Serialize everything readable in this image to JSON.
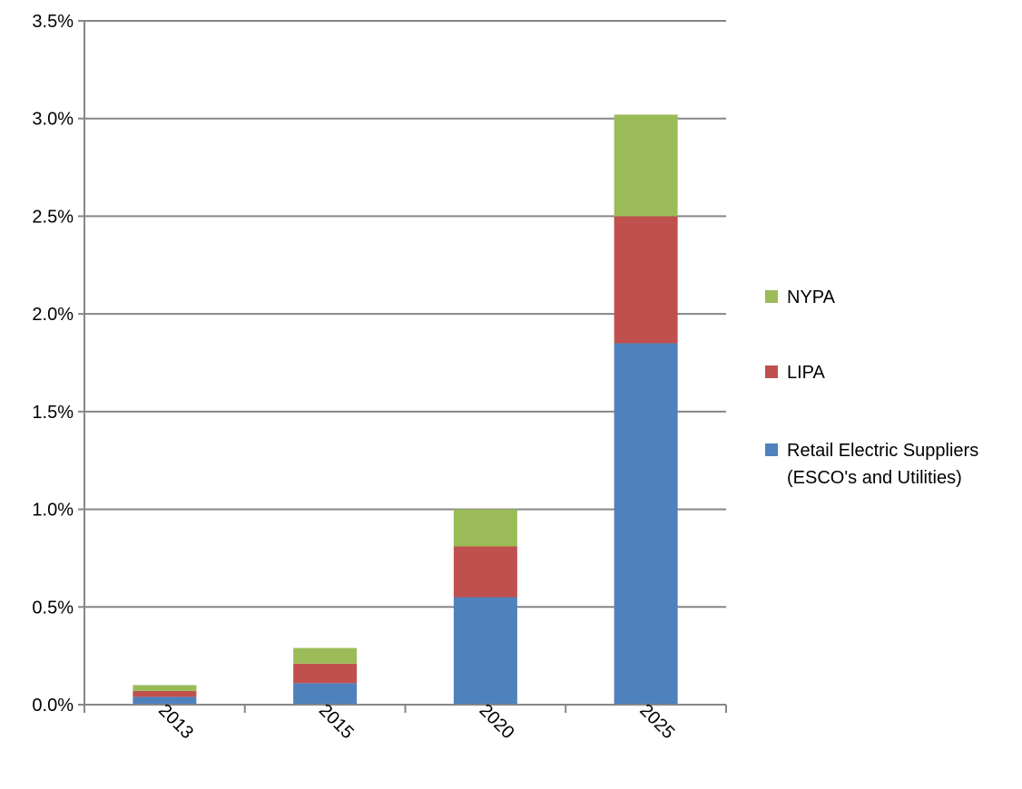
{
  "chart_data": {
    "type": "bar",
    "stacked": true,
    "categories": [
      "2013",
      "2015",
      "2020",
      "2025"
    ],
    "series": [
      {
        "name": "Retail Electric Suppliers (ESCO's and Utilities)",
        "legend_lines": [
          "Retail Electric Suppliers",
          "(ESCO's and Utilities)"
        ],
        "values": [
          0.04,
          0.11,
          0.55,
          1.85
        ],
        "color": "#4F81BD"
      },
      {
        "name": "LIPA",
        "legend_lines": [
          "LIPA"
        ],
        "values": [
          0.03,
          0.1,
          0.26,
          0.65
        ],
        "color": "#C0504D"
      },
      {
        "name": "NYPA",
        "legend_lines": [
          "NYPA"
        ],
        "values": [
          0.03,
          0.08,
          0.19,
          0.52
        ],
        "color": "#9BBB59"
      }
    ],
    "ylim": [
      0,
      3.5
    ],
    "yticks": [
      "0.0%",
      "0.5%",
      "1.0%",
      "1.5%",
      "2.0%",
      "2.5%",
      "3.0%",
      "3.5%"
    ],
    "ytick_values": [
      0,
      0.5,
      1.0,
      1.5,
      2.0,
      2.5,
      3.0,
      3.5
    ],
    "y_unit": "%",
    "grid": true,
    "legend_position": "right",
    "legend_order": [
      "NYPA",
      "LIPA",
      "Retail Electric Suppliers (ESCO's and Utilities)"
    ],
    "title": "",
    "xlabel": "",
    "ylabel": ""
  }
}
